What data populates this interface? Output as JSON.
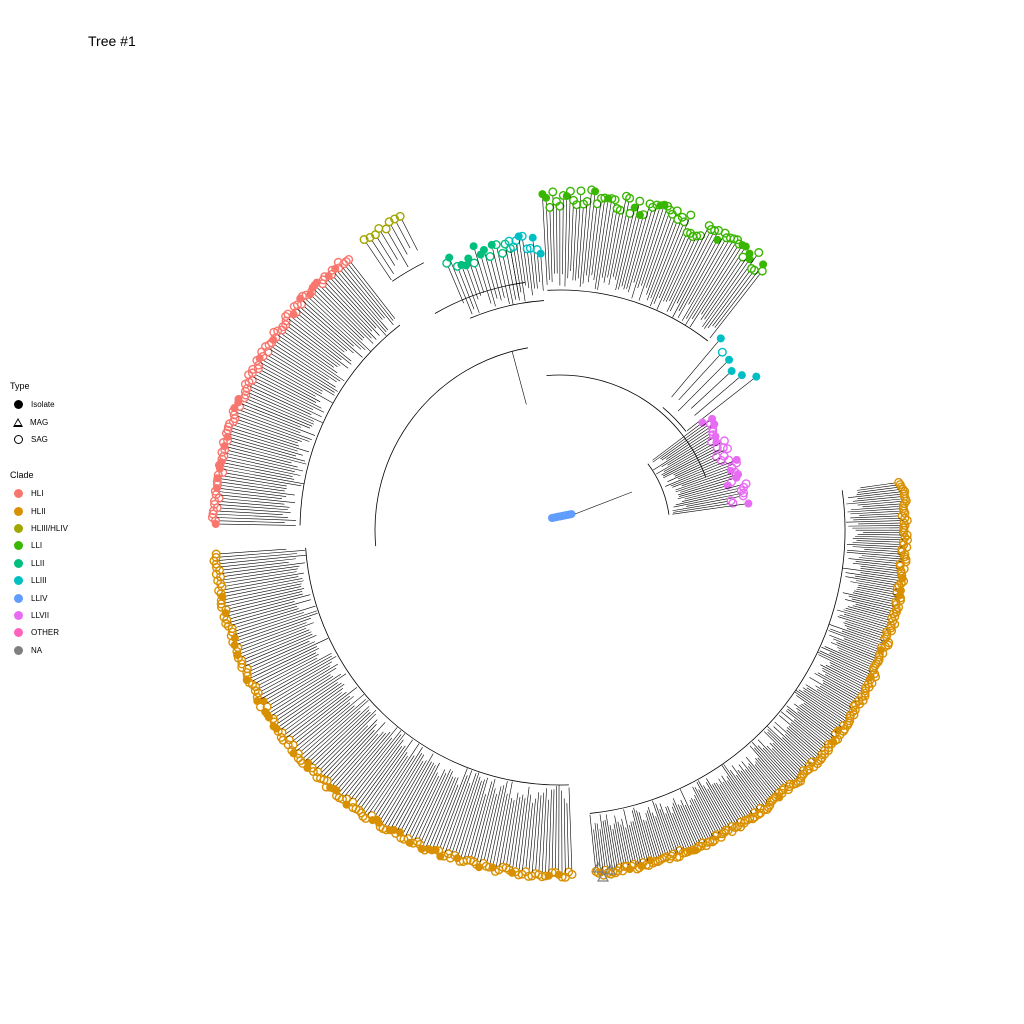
{
  "title": "Tree #1",
  "legend_type": {
    "title": "Type",
    "items": [
      {
        "label": "Isolate",
        "shape": "filled-circle"
      },
      {
        "label": "MAG",
        "shape": "open-triangle"
      },
      {
        "label": "SAG",
        "shape": "open-circle"
      }
    ]
  },
  "legend_clade": {
    "title": "Clade",
    "items": [
      {
        "label": "HLI",
        "color": "#F8766D"
      },
      {
        "label": "HLII",
        "color": "#D89000"
      },
      {
        "label": "HLIII/HLIV",
        "color": "#A3A500"
      },
      {
        "label": "LLI",
        "color": "#39B600"
      },
      {
        "label": "LLII",
        "color": "#00BF7D"
      },
      {
        "label": "LLIII",
        "color": "#00BFC4"
      },
      {
        "label": "LLIV",
        "color": "#619CFF"
      },
      {
        "label": "LLVII",
        "color": "#E76BF3"
      },
      {
        "label": "OTHER",
        "color": "#FF62BC"
      },
      {
        "label": "NA",
        "color": "#7F7F7F"
      }
    ]
  }
}
